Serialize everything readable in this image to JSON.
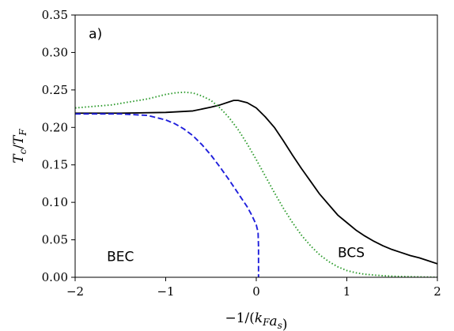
{
  "chart_data": {
    "type": "line",
    "xlabel": "−1/(k_F a_s)",
    "ylabel": "T_c/T_F",
    "xlim": [
      -2,
      2
    ],
    "ylim": [
      0,
      0.35
    ],
    "xticks": [
      -2,
      -1,
      0,
      1,
      2
    ],
    "xtick_labels": [
      "−2",
      "−1",
      "0",
      "1",
      "2"
    ],
    "yticks": [
      0,
      0.05,
      0.1,
      0.15,
      0.2,
      0.25,
      0.3,
      0.35
    ],
    "ytick_labels": [
      "0.00",
      "0.05",
      "0.10",
      "0.15",
      "0.20",
      "0.25",
      "0.30",
      "0.35"
    ],
    "grid": false,
    "annotations": [
      {
        "text": "a)",
        "x": -1.85,
        "y": 0.325
      },
      {
        "text": "BEC",
        "x": -1.65,
        "y": 0.028
      },
      {
        "text": "BCS",
        "x": 0.9,
        "y": 0.033
      }
    ],
    "series": [
      {
        "style": "solid",
        "color": "#000000",
        "x": [
          -2.0,
          -1.5,
          -1.0,
          -0.7,
          -0.5,
          -0.4,
          -0.3,
          -0.25,
          -0.2,
          -0.1,
          0.0,
          0.1,
          0.2,
          0.3,
          0.4,
          0.5,
          0.6,
          0.7,
          0.8,
          0.9,
          1.0,
          1.1,
          1.2,
          1.3,
          1.4,
          1.5,
          1.6,
          1.7,
          1.8,
          1.9,
          2.0
        ],
        "y": [
          0.219,
          0.219,
          0.22,
          0.222,
          0.227,
          0.23,
          0.234,
          0.236,
          0.236,
          0.233,
          0.226,
          0.214,
          0.2,
          0.182,
          0.163,
          0.145,
          0.128,
          0.111,
          0.097,
          0.083,
          0.073,
          0.063,
          0.055,
          0.048,
          0.042,
          0.037,
          0.033,
          0.029,
          0.026,
          0.022,
          0.018
        ]
      },
      {
        "style": "dotted",
        "color": "#2a9a2a",
        "x": [
          -2.0,
          -1.8,
          -1.6,
          -1.4,
          -1.2,
          -1.0,
          -0.9,
          -0.8,
          -0.7,
          -0.6,
          -0.5,
          -0.4,
          -0.3,
          -0.2,
          -0.1,
          0.0,
          0.1,
          0.2,
          0.3,
          0.4,
          0.5,
          0.6,
          0.7,
          0.8,
          0.9,
          1.0,
          1.1,
          1.2,
          1.3,
          1.4,
          1.6,
          1.8,
          2.0
        ],
        "y": [
          0.226,
          0.228,
          0.23,
          0.234,
          0.238,
          0.244,
          0.246,
          0.247,
          0.246,
          0.242,
          0.236,
          0.226,
          0.213,
          0.197,
          0.178,
          0.157,
          0.135,
          0.113,
          0.092,
          0.073,
          0.056,
          0.042,
          0.03,
          0.021,
          0.014,
          0.009,
          0.006,
          0.004,
          0.003,
          0.002,
          0.001,
          0.0005,
          0.0
        ]
      },
      {
        "style": "dashed",
        "color": "#1f1fdc",
        "x": [
          -2.0,
          -1.5,
          -1.2,
          -1.0,
          -0.9,
          -0.8,
          -0.7,
          -0.6,
          -0.5,
          -0.4,
          -0.3,
          -0.2,
          -0.1,
          -0.05,
          0.0,
          0.02,
          0.025,
          0.025,
          0.025
        ],
        "y": [
          0.218,
          0.218,
          0.216,
          0.21,
          0.205,
          0.198,
          0.189,
          0.177,
          0.163,
          0.147,
          0.13,
          0.112,
          0.094,
          0.083,
          0.07,
          0.06,
          0.04,
          0.02,
          0.0
        ]
      }
    ]
  }
}
